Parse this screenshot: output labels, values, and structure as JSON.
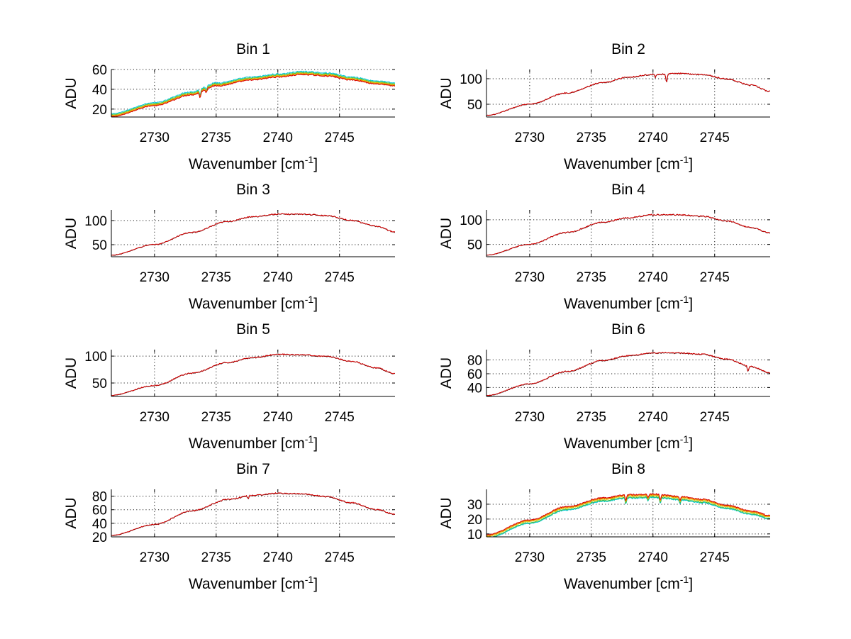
{
  "chart_data": [
    {
      "type": "line",
      "title": "Bin 1",
      "xlabel": "Wavenumber [cm",
      "xlabel_sup": "-1",
      "xlabel_end": "]",
      "ylabel": "ADU",
      "xlim": [
        2726.5,
        2749.5
      ],
      "ylim": [
        12,
        60
      ],
      "xticks": [
        2730,
        2735,
        2740,
        2745
      ],
      "yticks": [
        20,
        40,
        60
      ],
      "series": [
        {
          "name": "cyan",
          "color": "#00c8d8",
          "offset": 2.5
        },
        {
          "name": "green",
          "color": "#3fbf3f",
          "offset": 1.5
        },
        {
          "name": "yellow",
          "color": "#e0c000",
          "offset": 0.7
        },
        {
          "name": "orange",
          "color": "#f08000",
          "offset": 0
        },
        {
          "name": "red",
          "color": "#d80000",
          "offset": -0.6
        }
      ],
      "curve": {
        "x": [
          2726.5,
          2730,
          2733,
          2735,
          2738,
          2740,
          2742,
          2744,
          2746,
          2748,
          2749.5
        ],
        "y": [
          13,
          24,
          35,
          44,
          50,
          53,
          55.5,
          54,
          50,
          46,
          44
        ]
      },
      "dips": [
        {
          "x": 2733.7,
          "depth": 6
        },
        {
          "x": 2734.2,
          "depth": 4
        }
      ]
    },
    {
      "type": "line",
      "title": "Bin 2",
      "xlabel": "Wavenumber [cm",
      "xlabel_sup": "-1",
      "xlabel_end": "]",
      "ylabel": "ADU",
      "xlim": [
        2726.5,
        2749.5
      ],
      "ylim": [
        25,
        118
      ],
      "xticks": [
        2730,
        2735,
        2740,
        2745
      ],
      "yticks": [
        50,
        100
      ],
      "series": [
        {
          "name": "black",
          "color": "#111111",
          "offset": 0
        },
        {
          "name": "red",
          "color": "#d80000",
          "offset": 0.3
        }
      ],
      "curve": {
        "x": [
          2726.5,
          2730,
          2733,
          2736,
          2738,
          2740,
          2742,
          2744,
          2746,
          2748,
          2749.5
        ],
        "y": [
          28,
          50,
          72,
          92,
          103,
          108,
          110,
          108,
          99,
          87,
          75
        ]
      },
      "dips": [
        {
          "x": 2741.1,
          "depth": 18
        },
        {
          "x": 2740.2,
          "depth": 6
        }
      ]
    },
    {
      "type": "line",
      "title": "Bin 3",
      "xlabel": "Wavenumber [cm",
      "xlabel_sup": "-1",
      "xlabel_end": "]",
      "ylabel": "ADU",
      "xlim": [
        2726.5,
        2749.5
      ],
      "ylim": [
        25,
        122
      ],
      "xticks": [
        2730,
        2735,
        2740,
        2745
      ],
      "yticks": [
        50,
        100
      ],
      "series": [
        {
          "name": "black",
          "color": "#111111",
          "offset": 0
        },
        {
          "name": "red",
          "color": "#d80000",
          "offset": 0.3
        }
      ],
      "curve": {
        "x": [
          2726.5,
          2730,
          2733,
          2736,
          2738,
          2740,
          2742,
          2744,
          2746,
          2748,
          2749.5
        ],
        "y": [
          28,
          50,
          75,
          98,
          108,
          113,
          113,
          110,
          100,
          88,
          76
        ]
      },
      "dips": []
    },
    {
      "type": "line",
      "title": "Bin 4",
      "xlabel": "Wavenumber [cm",
      "xlabel_sup": "-1",
      "xlabel_end": "]",
      "ylabel": "ADU",
      "xlim": [
        2726.5,
        2749.5
      ],
      "ylim": [
        25,
        120
      ],
      "xticks": [
        2730,
        2735,
        2740,
        2745
      ],
      "yticks": [
        50,
        100
      ],
      "series": [
        {
          "name": "black",
          "color": "#111111",
          "offset": 0
        },
        {
          "name": "red",
          "color": "#d80000",
          "offset": 0.3
        }
      ],
      "curve": {
        "x": [
          2726.5,
          2730,
          2733,
          2736,
          2738,
          2740,
          2742,
          2744,
          2746,
          2748,
          2749.5
        ],
        "y": [
          28,
          50,
          74,
          95,
          104,
          110,
          110,
          107,
          97,
          84,
          73
        ]
      },
      "dips": []
    },
    {
      "type": "line",
      "title": "Bin 5",
      "xlabel": "Wavenumber [cm",
      "xlabel_sup": "-1",
      "xlabel_end": "]",
      "ylabel": "ADU",
      "xlim": [
        2726.5,
        2749.5
      ],
      "ylim": [
        25,
        112
      ],
      "xticks": [
        2730,
        2735,
        2740,
        2745
      ],
      "yticks": [
        50,
        100
      ],
      "series": [
        {
          "name": "black",
          "color": "#111111",
          "offset": 0
        },
        {
          "name": "red",
          "color": "#d80000",
          "offset": 0.3
        }
      ],
      "curve": {
        "x": [
          2726.5,
          2730,
          2733,
          2736,
          2738,
          2740,
          2742,
          2744,
          2746,
          2748,
          2749.5
        ],
        "y": [
          27,
          45,
          68,
          88,
          97,
          103,
          102,
          99,
          90,
          78,
          67
        ]
      },
      "dips": []
    },
    {
      "type": "line",
      "title": "Bin 6",
      "xlabel": "Wavenumber [cm",
      "xlabel_sup": "-1",
      "xlabel_end": "]",
      "ylabel": "ADU",
      "xlim": [
        2726.5,
        2749.5
      ],
      "ylim": [
        27,
        95
      ],
      "xticks": [
        2730,
        2735,
        2740,
        2745
      ],
      "yticks": [
        40,
        60,
        80
      ],
      "series": [
        {
          "name": "black",
          "color": "#111111",
          "offset": 0
        },
        {
          "name": "red",
          "color": "#d80000",
          "offset": 0.3
        }
      ],
      "curve": {
        "x": [
          2726.5,
          2730,
          2733,
          2736,
          2738,
          2740,
          2742,
          2744,
          2746,
          2748,
          2749.5
        ],
        "y": [
          28,
          45,
          63,
          79,
          86,
          90,
          90,
          88,
          81,
          70,
          61
        ]
      },
      "dips": [
        {
          "x": 2747.7,
          "depth": 8
        }
      ]
    },
    {
      "type": "line",
      "title": "Bin 7",
      "xlabel": "Wavenumber [cm",
      "xlabel_sup": "-1",
      "xlabel_end": "]",
      "ylabel": "ADU",
      "xlim": [
        2726.5,
        2749.5
      ],
      "ylim": [
        20,
        90
      ],
      "xticks": [
        2730,
        2735,
        2740,
        2745
      ],
      "yticks": [
        20,
        40,
        60,
        80
      ],
      "series": [
        {
          "name": "black",
          "color": "#111111",
          "offset": 0
        },
        {
          "name": "red",
          "color": "#d80000",
          "offset": 0.3
        }
      ],
      "curve": {
        "x": [
          2726.5,
          2730,
          2733,
          2736,
          2738,
          2740,
          2742,
          2744,
          2746,
          2748,
          2749.5
        ],
        "y": [
          22,
          38,
          58,
          75,
          81,
          84,
          83,
          79,
          70,
          60,
          53
        ]
      },
      "dips": [
        {
          "x": 2737.6,
          "depth": 4
        }
      ]
    },
    {
      "type": "line",
      "title": "Bin 8",
      "xlabel": "Wavenumber [cm",
      "xlabel_sup": "-1",
      "xlabel_end": "]",
      "ylabel": "ADU",
      "xlim": [
        2726.5,
        2749.5
      ],
      "ylim": [
        8,
        40
      ],
      "xticks": [
        2730,
        2735,
        2740,
        2745
      ],
      "yticks": [
        10,
        20,
        30
      ],
      "series": [
        {
          "name": "cyan",
          "color": "#00c8d8",
          "offset": -1.0
        },
        {
          "name": "green",
          "color": "#3fbf3f",
          "offset": -0.5
        },
        {
          "name": "yellow",
          "color": "#e0c000",
          "offset": 0.4
        },
        {
          "name": "orange",
          "color": "#f08000",
          "offset": 0.9
        },
        {
          "name": "red",
          "color": "#d80000",
          "offset": 1.4
        }
      ],
      "curve": {
        "x": [
          2726.5,
          2730,
          2733,
          2736,
          2738,
          2740,
          2742,
          2744,
          2746,
          2748,
          2749.5
        ],
        "y": [
          8,
          18,
          27,
          33,
          35,
          35.5,
          34,
          32,
          28,
          24,
          21
        ]
      },
      "dips": [
        {
          "x": 2737.8,
          "depth": 4
        },
        {
          "x": 2739.6,
          "depth": 3
        },
        {
          "x": 2740.6,
          "depth": 4
        },
        {
          "x": 2742.2,
          "depth": 3
        }
      ]
    }
  ]
}
